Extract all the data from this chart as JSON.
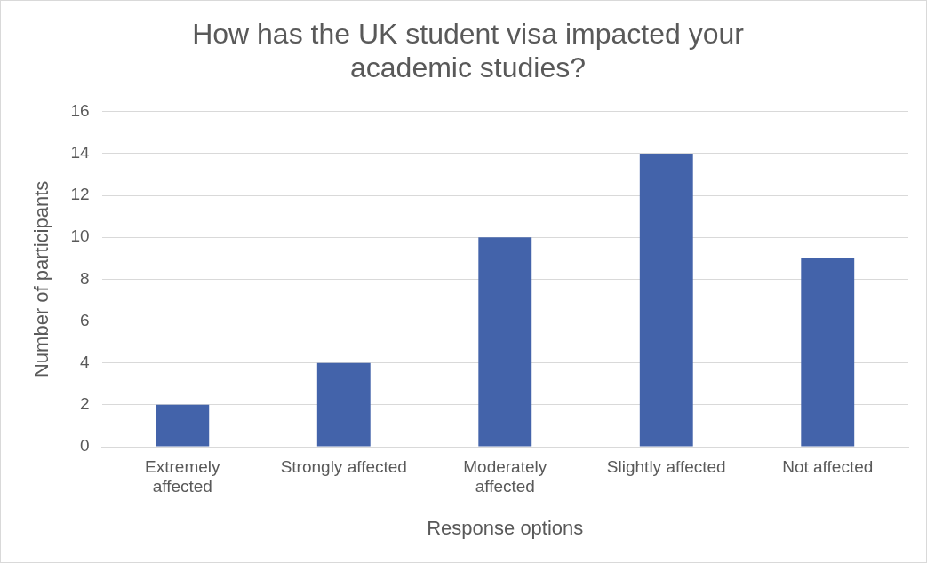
{
  "chart_data": {
    "type": "bar",
    "title": "How has the UK student visa impacted your academic studies?",
    "xlabel": "Response options",
    "ylabel": "Number of participants",
    "categories": [
      "Extremely affected",
      "Strongly affected",
      "Moderately affected",
      "Slightly affected",
      "Not affected"
    ],
    "values": [
      2,
      4,
      10,
      14,
      9
    ],
    "color": "#4363aa",
    "ylim": [
      0,
      16
    ],
    "yticks": [
      0,
      2,
      4,
      6,
      8,
      10,
      12,
      14,
      16
    ],
    "grid": "y",
    "legend": false
  }
}
